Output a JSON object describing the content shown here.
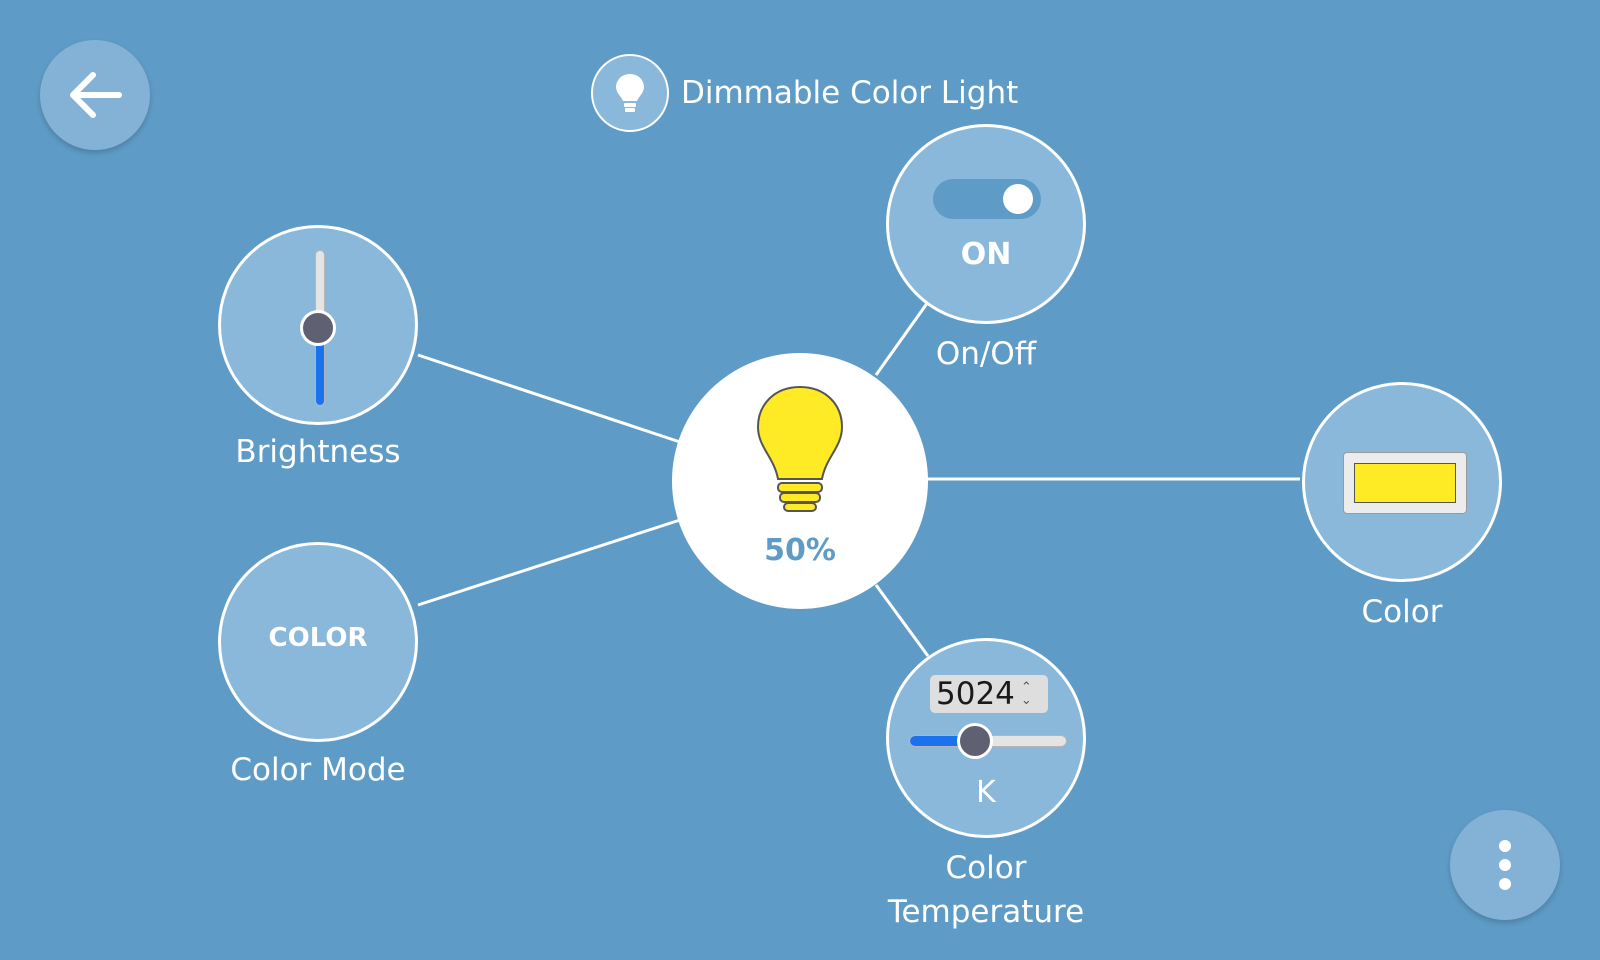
{
  "header": {
    "title": "Dimmable Color Light",
    "device_icon": "bulb-icon"
  },
  "nav": {
    "back_icon": "arrow-left-icon",
    "menu_icon": "more-vertical-icon"
  },
  "hub": {
    "brightness_value": "50%",
    "icon": "bulb-icon",
    "bulb_color": "#ffea26"
  },
  "controls": {
    "on_off": {
      "label": "On/Off",
      "state": "ON",
      "on": true
    },
    "brightness": {
      "label": "Brightness",
      "level": 0.5
    },
    "color_mode": {
      "label": "Color Mode",
      "value": "COLOR"
    },
    "color": {
      "label": "Color",
      "value": "#ffea26"
    },
    "color_temperature": {
      "label_line1": "Color",
      "label_line2": "Temperature",
      "value": "5024",
      "unit": "K",
      "level": 0.42
    }
  },
  "colors": {
    "background": "#5e9cc7",
    "node": "#8ab8da",
    "accent": "#1a72ef",
    "knob": "#5f6172"
  }
}
